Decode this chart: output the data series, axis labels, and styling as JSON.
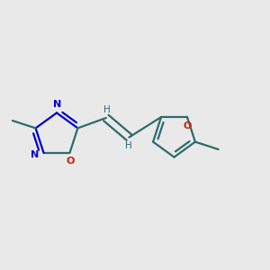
{
  "bg_color": "#e9e9e9",
  "bond_color": "#2d6b6b",
  "n_color": "#0000cc",
  "o_color": "#cc2200",
  "line_width": 1.6,
  "fig_w": 3.0,
  "fig_h": 3.0,
  "dpi": 100,
  "xlim": [
    0.0,
    1.0
  ],
  "ylim": [
    0.2,
    0.8
  ]
}
